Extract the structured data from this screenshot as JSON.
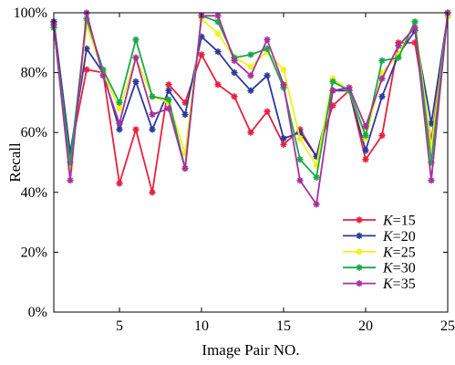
{
  "chart_data": {
    "type": "line",
    "xlabel": "Image Pair NO.",
    "ylabel": "Recall",
    "xlim": [
      1,
      25
    ],
    "ylim": [
      0,
      100
    ],
    "x_ticks": [
      5,
      10,
      15,
      20,
      25
    ],
    "y_ticks": [
      0,
      20,
      40,
      60,
      80,
      100
    ],
    "y_tick_labels": [
      "0%",
      "20%",
      "40%",
      "60%",
      "80%",
      "100%"
    ],
    "grid": false,
    "legend_position": "bottom-right",
    "x": [
      1,
      2,
      3,
      4,
      5,
      6,
      7,
      8,
      9,
      10,
      11,
      12,
      13,
      14,
      15,
      16,
      17,
      18,
      19,
      20,
      21,
      22,
      23,
      24,
      25
    ],
    "series": [
      {
        "name": "K=15",
        "legend_prefix": "K",
        "legend_suffix": "=15",
        "color": "#e8213d",
        "values": [
          97,
          53,
          81,
          80,
          43,
          61,
          40,
          76,
          70,
          86,
          76,
          72,
          60,
          67,
          56,
          61,
          52,
          69,
          74,
          51,
          59,
          90,
          90,
          57,
          99
        ]
      },
      {
        "name": "K=20",
        "legend_prefix": "K",
        "legend_suffix": "=20",
        "color": "#2b3a9c",
        "values": [
          97,
          53,
          88,
          80,
          61,
          77,
          61,
          74,
          66,
          92,
          87,
          80,
          74,
          79,
          58,
          60,
          52,
          74,
          74,
          54,
          72,
          86,
          94,
          63,
          99
        ]
      },
      {
        "name": "K=25",
        "legend_prefix": "K",
        "legend_suffix": "=25",
        "color": "#f2ef1c",
        "values": [
          95,
          48,
          96,
          80,
          68,
          85,
          72,
          70,
          53,
          98,
          93,
          85,
          82,
          87,
          81,
          58,
          49,
          78,
          74,
          58,
          80,
          86,
          97,
          55,
          99
        ]
      },
      {
        "name": "K=30",
        "legend_prefix": "K",
        "legend_suffix": "=30",
        "color": "#1aa84a",
        "values": [
          95,
          50,
          98,
          81,
          70,
          91,
          72,
          71,
          48,
          99,
          97,
          85,
          86,
          88,
          75,
          51,
          45,
          77,
          74,
          59,
          84,
          85,
          97,
          50,
          100
        ]
      },
      {
        "name": "K=35",
        "legend_prefix": "K",
        "legend_suffix": "=35",
        "color": "#a8309e",
        "values": [
          96,
          44,
          100,
          79,
          63,
          85,
          66,
          68,
          48,
          99,
          99,
          84,
          79,
          91,
          76,
          44,
          36,
          74,
          75,
          62,
          78,
          89,
          95,
          44,
          100
        ]
      }
    ]
  }
}
